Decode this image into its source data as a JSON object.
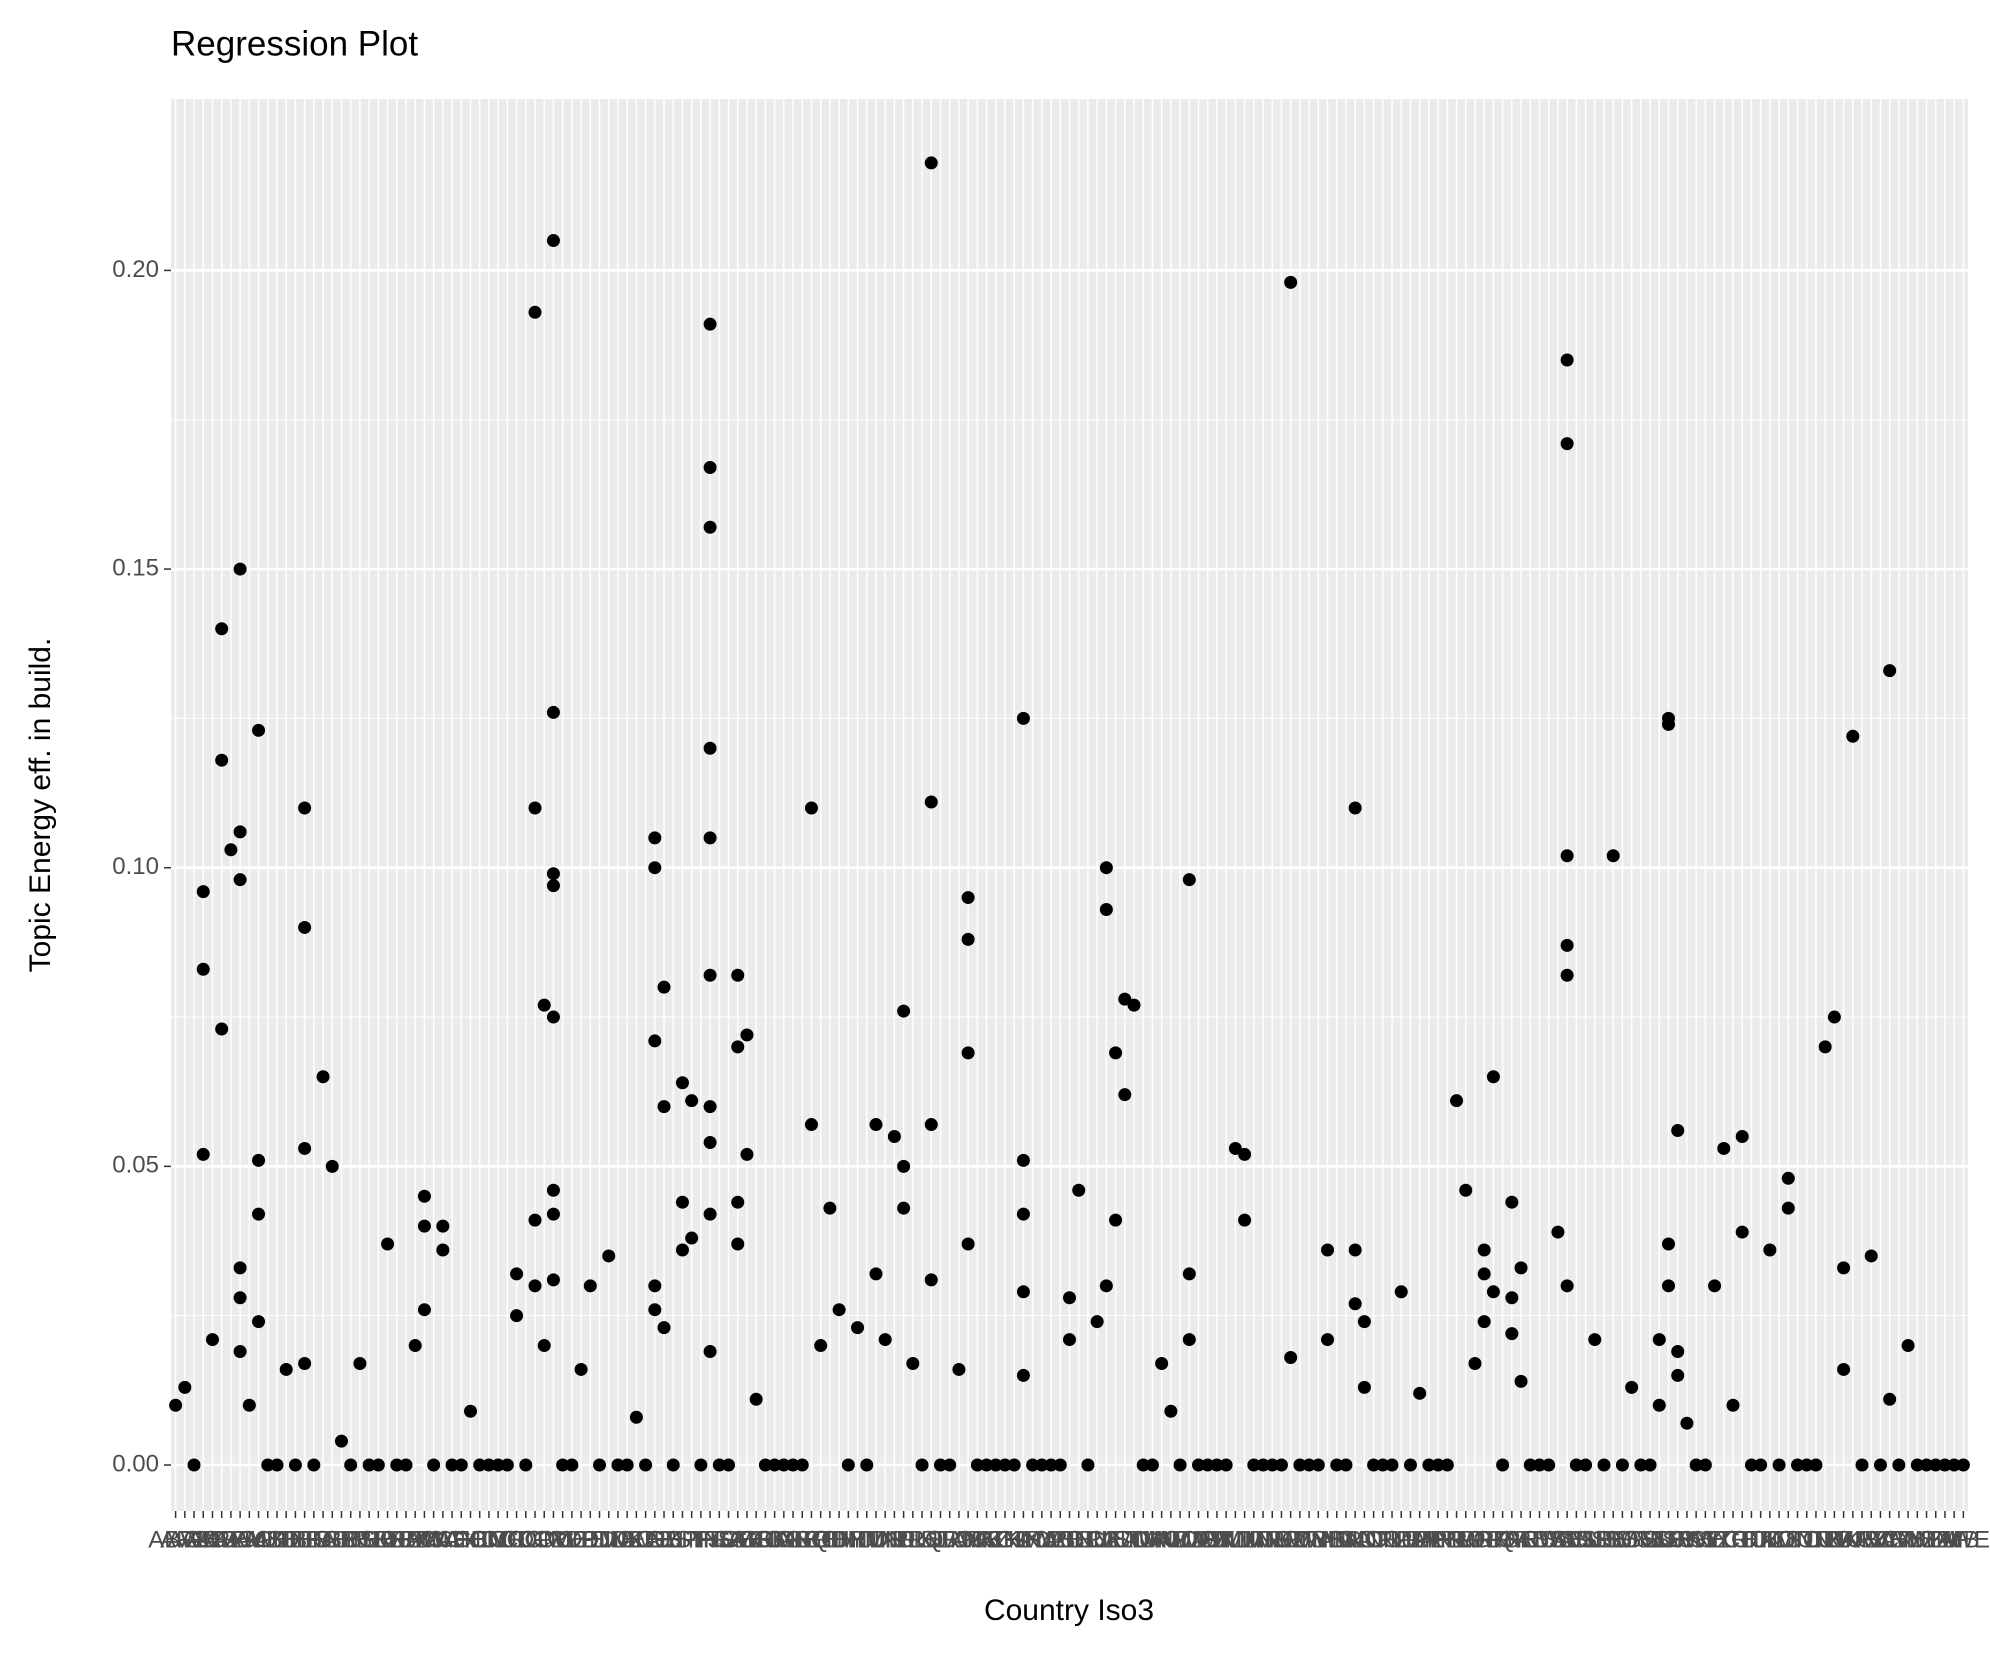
{
  "chart_data": {
    "type": "scatter",
    "title": "Regression Plot",
    "x_label": "Country Iso3",
    "y_label": "Topic Energy eff. in build.",
    "categories": [
      "ABW",
      "AFG",
      "AGO",
      "ALB",
      "AND",
      "ARE",
      "ARG",
      "ARM",
      "ATG",
      "AUS",
      "AUT",
      "AZE",
      "BDI",
      "BEL",
      "BEN",
      "BFA",
      "BGD",
      "BGR",
      "BHR",
      "BHS",
      "BIH",
      "BLR",
      "BLZ",
      "BOL",
      "BRA",
      "BRB",
      "BRN",
      "BTN",
      "BWA",
      "CAF",
      "CAN",
      "CHE",
      "CHL",
      "CHN",
      "CIV",
      "CMR",
      "COD",
      "COG",
      "COL",
      "COM",
      "CPV",
      "CRI",
      "CUB",
      "CYP",
      "CZE",
      "DEU",
      "DJI",
      "DMA",
      "DNK",
      "DOM",
      "DZA",
      "ECU",
      "EGY",
      "ERI",
      "ESP",
      "EST",
      "ETH",
      "FIN",
      "FJI",
      "FRA",
      "FSM",
      "GAB",
      "GBR",
      "GEO",
      "GHA",
      "GIN",
      "GMB",
      "GNB",
      "GNQ",
      "GRC",
      "GRD",
      "GTM",
      "GUY",
      "HND",
      "HRV",
      "HTI",
      "HUN",
      "IDN",
      "IND",
      "IRL",
      "IRN",
      "IRQ",
      "ISL",
      "ISR",
      "ITA",
      "JAM",
      "JOR",
      "JPN",
      "KAZ",
      "KEN",
      "KGZ",
      "KHM",
      "KIR",
      "KNA",
      "KOR",
      "KWT",
      "LAO",
      "LBN",
      "LBR",
      "LBY",
      "LCA",
      "LIE",
      "LKA",
      "LSO",
      "LTU",
      "LUX",
      "LVA",
      "MAR",
      "MCO",
      "MDA",
      "MDG",
      "MDV",
      "MEX",
      "MHL",
      "MKD",
      "MLI",
      "MLT",
      "MMR",
      "MNE",
      "MNG",
      "MOZ",
      "MRT",
      "MUS",
      "MWI",
      "MYS",
      "NAM",
      "NER",
      "NGA",
      "NIC",
      "NLD",
      "NOR",
      "NPL",
      "NRU",
      "NZL",
      "OMN",
      "PAK",
      "PAN",
      "PER",
      "PHL",
      "PLW",
      "PNG",
      "POL",
      "PRK",
      "PRT",
      "PRY",
      "PSE",
      "QAT",
      "ROU",
      "RUS",
      "RWA",
      "SAU",
      "SDN",
      "SEN",
      "SGP",
      "SLB",
      "SLE",
      "SLV",
      "SMR",
      "SOM",
      "SRB",
      "SSD",
      "STP",
      "SUR",
      "SVK",
      "SVN",
      "SWE",
      "SWZ",
      "SYC",
      "SYR",
      "TCD",
      "TGO",
      "THA",
      "TJK",
      "TKM",
      "TLS",
      "TON",
      "TTO",
      "TUN",
      "TUR",
      "TUV",
      "TZA",
      "UGA",
      "UKR",
      "URY",
      "USA",
      "UZB",
      "VCT",
      "VEN",
      "VNM",
      "VUT",
      "WSM",
      "YEM",
      "ZAF",
      "ZMB",
      "ZWE"
    ],
    "x": [
      "ABW",
      "AFG",
      "ALB",
      "ALB",
      "ALB",
      "AND",
      "ARE",
      "ARE",
      "ARE",
      "ARG",
      "ARM",
      "ARM",
      "ARM",
      "ARM",
      "ARM",
      "ARM",
      "ATG",
      "AUS",
      "AUS",
      "AUS",
      "AUS",
      "BDI",
      "BEN",
      "BEN",
      "BEN",
      "BEN",
      "BGD",
      "BGR",
      "BHR",
      "BIH",
      "BOL",
      "BRN",
      "BTN",
      "BTN",
      "BTN",
      "CAF",
      "CAF",
      "CHL",
      "COG",
      "COG",
      "COM",
      "COM",
      "COM",
      "COM",
      "CPV",
      "CPV",
      "CRI",
      "CRI",
      "CRI",
      "CRI",
      "CRI",
      "CRI",
      "CRI",
      "CRI",
      "CZE",
      "DEU",
      "DMA",
      "DZA",
      "EGY",
      "EGY",
      "EGY",
      "EGY",
      "EGY",
      "ERI",
      "ERI",
      "ERI",
      "EST",
      "EST",
      "EST",
      "ETH",
      "ETH",
      "FJI",
      "FJI",
      "FJI",
      "FJI",
      "FJI",
      "FJI",
      "FJI",
      "FJI",
      "FJI",
      "FJI",
      "GAB",
      "GAB",
      "GAB",
      "GAB",
      "GBR",
      "GBR",
      "GEO",
      "GRC",
      "GRC",
      "GRD",
      "GTM",
      "GUY",
      "HRV",
      "HUN",
      "HUN",
      "IDN",
      "IND",
      "IRL",
      "IRL",
      "IRL",
      "IRN",
      "ISL",
      "ISL",
      "ISL",
      "ISL",
      "JAM",
      "JOR",
      "JOR",
      "JOR",
      "JOR",
      "KIR",
      "KIR",
      "KIR",
      "KIR",
      "KIR",
      "LBN",
      "LBN",
      "LBR",
      "LCA",
      "LIE",
      "LIE",
      "LIE",
      "LKA",
      "LKA",
      "LSO",
      "LSO",
      "LTU",
      "MAR",
      "MCO",
      "MDG",
      "MDG",
      "MDG",
      "MLI",
      "MLT",
      "MLT",
      "MRT",
      "MRT",
      "NAM",
      "NAM",
      "NIC",
      "NIC",
      "NIC",
      "NLD",
      "NLD",
      "NZL",
      "PAK",
      "PLW",
      "PNG",
      "POL",
      "PRK",
      "PRK",
      "PRK",
      "PRT",
      "PRT",
      "PSE",
      "PSE",
      "PSE",
      "QAT",
      "QAT",
      "SAU",
      "SDN",
      "SDN",
      "SDN",
      "SDN",
      "SDN",
      "SDN",
      "SLB",
      "SLV",
      "SOM",
      "STP",
      "STP",
      "SUR",
      "SUR",
      "SUR",
      "SUR",
      "SVK",
      "SVK",
      "SVK",
      "SVN",
      "SYC",
      "SYR",
      "TCD",
      "TGO",
      "TGO",
      "TKM",
      "TON",
      "TON",
      "TUV",
      "TZA",
      "UGA",
      "UGA",
      "UKR",
      "USA",
      "VCT",
      "VCT",
      "VNM",
      "AGO",
      "AUT",
      "AZE",
      "BEL",
      "BFA",
      "BHS",
      "BLR",
      "BLZ",
      "BRA",
      "BRB",
      "BWA",
      "CAN",
      "CHE",
      "CHN",
      "CIV",
      "CMR",
      "COD",
      "COL",
      "CUB",
      "CYP",
      "DJI",
      "DNK",
      "DOM",
      "ECU",
      "ESP",
      "FIN",
      "FRA",
      "FSM",
      "GHA",
      "GIN",
      "GMB",
      "GNB",
      "GNQ",
      "HND",
      "HTI",
      "IRQ",
      "ISR",
      "ITA",
      "JPN",
      "KAZ",
      "KEN",
      "KGZ",
      "KHM",
      "KNA",
      "KOR",
      "KWT",
      "LAO",
      "LBY",
      "LUX",
      "LVA",
      "MDA",
      "MDV",
      "MEX",
      "MHL",
      "MKD",
      "MMR",
      "MNE",
      "MNG",
      "MOZ",
      "MUS",
      "MWI",
      "MYS",
      "NER",
      "NGA",
      "NOR",
      "NPL",
      "NRU",
      "OMN",
      "PAN",
      "PER",
      "PHL",
      "PRY",
      "ROU",
      "RUS",
      "RWA",
      "SEN",
      "SGP",
      "SLE",
      "SMR",
      "SRB",
      "SSD",
      "SWE",
      "SWZ",
      "THA",
      "TJK",
      "TLS",
      "TTO",
      "TUN",
      "TUR",
      "URY",
      "UZB",
      "VEN",
      "VUT",
      "WSM",
      "YEM",
      "ZAF",
      "ZMB",
      "ZWE"
    ],
    "values": [
      0.01,
      0.013,
      0.096,
      0.083,
      0.052,
      0.021,
      0.14,
      0.118,
      0.073,
      0.103,
      0.15,
      0.106,
      0.098,
      0.033,
      0.028,
      0.019,
      0.01,
      0.123,
      0.051,
      0.042,
      0.024,
      0.016,
      0.11,
      0.09,
      0.053,
      0.017,
      0.065,
      0.05,
      0.004,
      0.017,
      0.037,
      0.02,
      0.045,
      0.04,
      0.026,
      0.04,
      0.036,
      0.009,
      0.032,
      0.025,
      0.193,
      0.11,
      0.041,
      0.03,
      0.077,
      0.02,
      0.205,
      0.126,
      0.099,
      0.097,
      0.075,
      0.046,
      0.042,
      0.031,
      0.016,
      0.03,
      0.035,
      0.008,
      0.105,
      0.1,
      0.071,
      0.03,
      0.026,
      0.08,
      0.06,
      0.023,
      0.064,
      0.044,
      0.036,
      0.061,
      0.038,
      0.191,
      0.167,
      0.157,
      0.12,
      0.105,
      0.082,
      0.06,
      0.054,
      0.042,
      0.019,
      0.082,
      0.07,
      0.044,
      0.037,
      0.072,
      0.052,
      0.011,
      0.11,
      0.057,
      0.02,
      0.043,
      0.026,
      0.023,
      0.057,
      0.032,
      0.021,
      0.055,
      0.076,
      0.05,
      0.043,
      0.017,
      0.218,
      0.111,
      0.057,
      0.031,
      0.016,
      0.095,
      0.088,
      0.069,
      0.037,
      0.125,
      0.051,
      0.042,
      0.029,
      0.015,
      0.028,
      0.021,
      0.046,
      0.024,
      0.1,
      0.093,
      0.03,
      0.069,
      0.041,
      0.078,
      0.062,
      0.077,
      0.017,
      0.009,
      0.098,
      0.032,
      0.021,
      0.053,
      0.052,
      0.041,
      0.198,
      0.018,
      0.036,
      0.021,
      0.11,
      0.036,
      0.027,
      0.024,
      0.013,
      0.029,
      0.012,
      0.061,
      0.046,
      0.017,
      0.036,
      0.032,
      0.024,
      0.065,
      0.029,
      0.044,
      0.028,
      0.022,
      0.033,
      0.014,
      0.039,
      0.185,
      0.171,
      0.102,
      0.087,
      0.082,
      0.03,
      0.021,
      0.102,
      0.013,
      0.021,
      0.01,
      0.125,
      0.124,
      0.037,
      0.03,
      0.056,
      0.019,
      0.015,
      0.007,
      0.03,
      0.053,
      0.01,
      0.055,
      0.039,
      0.036,
      0.048,
      0.043,
      0.07,
      0.075,
      0.033,
      0.016,
      0.122,
      0.035,
      0.133,
      0.011,
      0.02,
      0,
      0,
      0,
      0,
      0,
      0,
      0,
      0,
      0,
      0,
      0,
      0,
      0,
      0,
      0,
      0,
      0,
      0,
      0,
      0,
      0,
      0,
      0,
      0,
      0,
      0,
      0,
      0,
      0,
      0,
      0,
      0,
      0,
      0,
      0,
      0,
      0,
      0,
      0,
      0,
      0,
      0,
      0,
      0,
      0,
      0,
      0,
      0,
      0,
      0,
      0,
      0,
      0,
      0,
      0,
      0,
      0,
      0,
      0,
      0,
      0,
      0,
      0,
      0,
      0,
      0,
      0,
      0,
      0,
      0,
      0,
      0,
      0,
      0,
      0,
      0,
      0,
      0,
      0,
      0,
      0,
      0,
      0,
      0,
      0,
      0,
      0,
      0,
      0,
      0,
      0,
      0,
      0,
      0,
      0,
      0,
      0,
      0
    ],
    "color": "#000000",
    "ylim": [
      -0.0077,
      0.2287
    ],
    "yticks": [
      {
        "value": 0,
        "label": "0.00"
      },
      {
        "value": 0.05,
        "label": "0.05"
      },
      {
        "value": 0.1,
        "label": "0.10"
      },
      {
        "value": 0.15,
        "label": "0.15"
      },
      {
        "value": 0.2,
        "label": "0.20"
      }
    ],
    "grid": true
  }
}
